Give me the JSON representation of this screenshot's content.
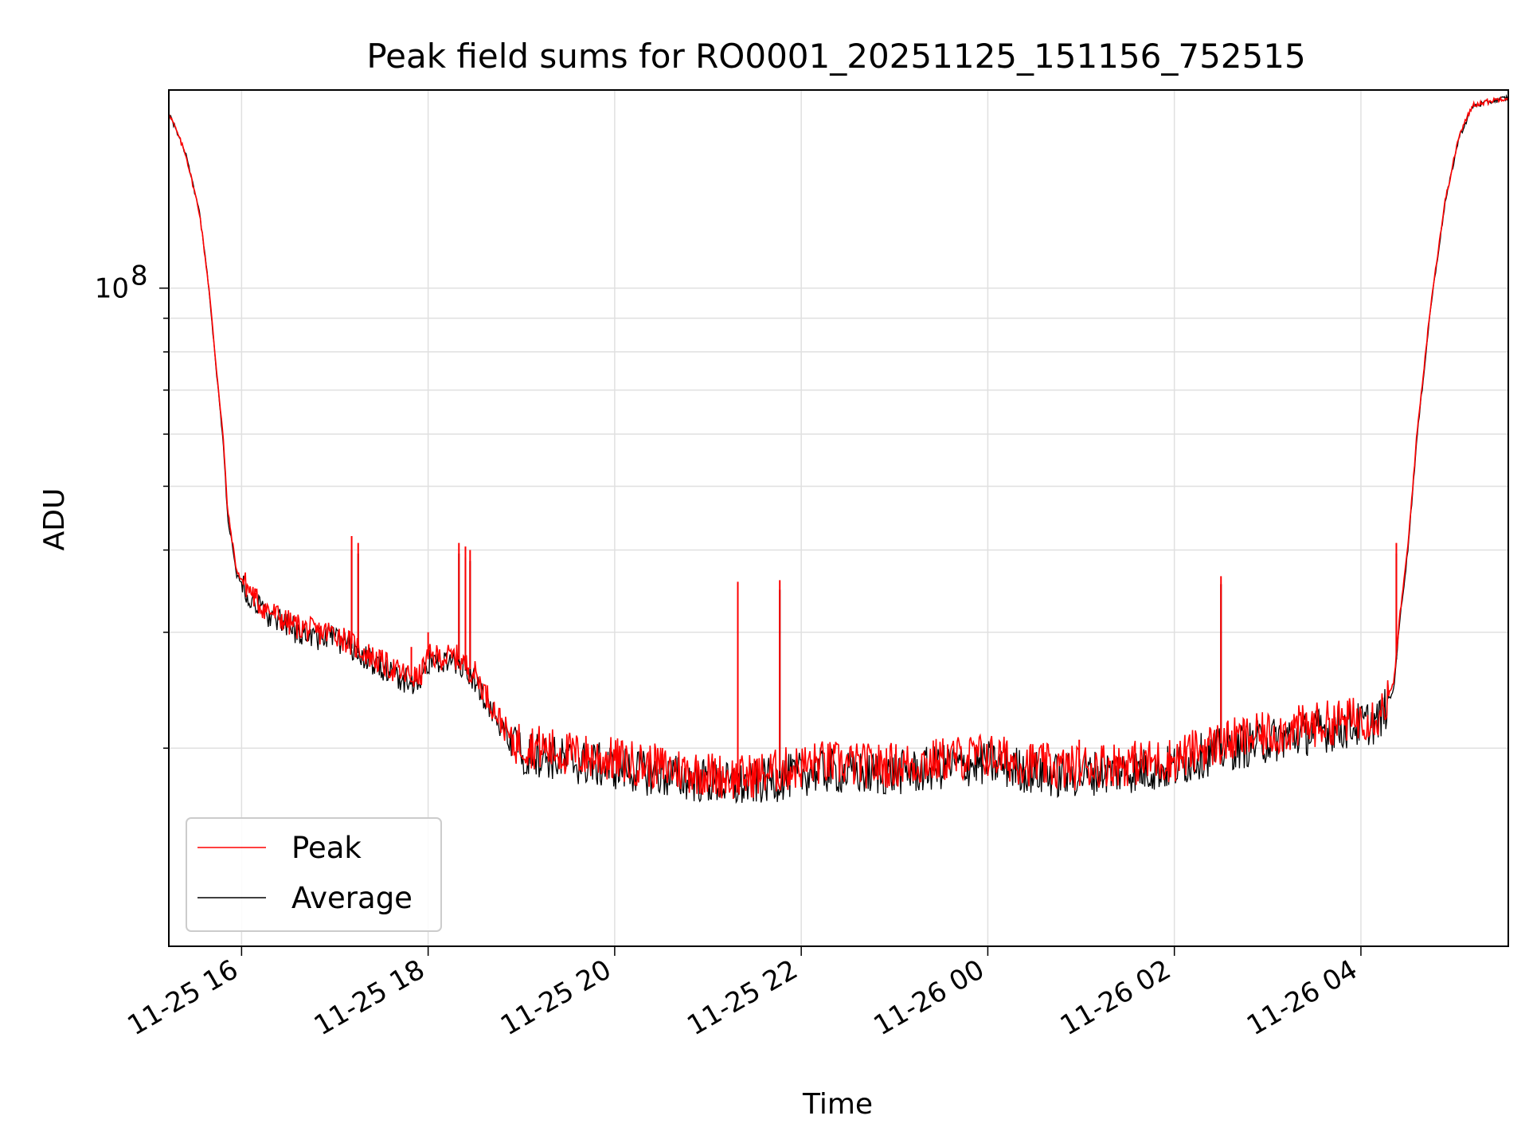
{
  "chart_data": {
    "type": "line",
    "title": "Peak field sums for RO0001_20251125_151156_752515",
    "xlabel": "Time",
    "ylabel": "ADU",
    "yscale": "log",
    "ylim": [
      10000000,
      200000000
    ],
    "xlim_hours": [
      15.22,
      5.58
    ],
    "x_ticks": [
      "11-25 16",
      "11-25 18",
      "11-25 20",
      "11-25 22",
      "11-26 00",
      "11-26 02",
      "11-26 04"
    ],
    "y_major_tick": {
      "value": 100000000,
      "label_base": "10",
      "label_exp": "8"
    },
    "grid": true,
    "legend_location": "lower left",
    "series": [
      {
        "name": "Peak",
        "color": "#ff0000",
        "points": [
          {
            "t": 15.22,
            "v": 185000000
          },
          {
            "t": 15.4,
            "v": 160000000
          },
          {
            "t": 15.55,
            "v": 130000000
          },
          {
            "t": 15.65,
            "v": 100000000
          },
          {
            "t": 15.72,
            "v": 78000000
          },
          {
            "t": 15.8,
            "v": 60000000
          },
          {
            "t": 15.85,
            "v": 46000000
          },
          {
            "t": 15.95,
            "v": 37000000
          },
          {
            "t": 16.2,
            "v": 33000000
          },
          {
            "t": 16.5,
            "v": 31000000
          },
          {
            "t": 16.8,
            "v": 30000000
          },
          {
            "t": 17.0,
            "v": 30000000
          },
          {
            "t": 17.15,
            "v": 29000000
          },
          {
            "t": 17.4,
            "v": 27500000
          },
          {
            "t": 17.7,
            "v": 26000000
          },
          {
            "t": 17.9,
            "v": 25500000
          },
          {
            "t": 18.0,
            "v": 27500000
          },
          {
            "t": 18.3,
            "v": 27500000
          },
          {
            "t": 18.5,
            "v": 26000000
          },
          {
            "t": 18.7,
            "v": 23000000
          },
          {
            "t": 18.9,
            "v": 20500000
          },
          {
            "t": 19.5,
            "v": 19600000
          },
          {
            "t": 20.0,
            "v": 19200000
          },
          {
            "t": 20.5,
            "v": 18700000
          },
          {
            "t": 21.0,
            "v": 18300000
          },
          {
            "t": 21.3,
            "v": 18000000
          },
          {
            "t": 21.7,
            "v": 18400000
          },
          {
            "t": 22.2,
            "v": 19000000
          },
          {
            "t": 22.7,
            "v": 18800000
          },
          {
            "t": 23.2,
            "v": 18900000
          },
          {
            "t": 23.6,
            "v": 19300000
          },
          {
            "t": 24.0,
            "v": 19500000
          },
          {
            "t": 24.4,
            "v": 19000000
          },
          {
            "t": 24.8,
            "v": 18600000
          },
          {
            "t": 25.2,
            "v": 18900000
          },
          {
            "t": 25.6,
            "v": 19000000
          },
          {
            "t": 26.0,
            "v": 19200000
          },
          {
            "t": 26.3,
            "v": 20000000
          },
          {
            "t": 26.6,
            "v": 20500000
          },
          {
            "t": 27.0,
            "v": 21000000
          },
          {
            "t": 27.5,
            "v": 21700000
          },
          {
            "t": 27.9,
            "v": 22100000
          },
          {
            "t": 28.2,
            "v": 22500000
          },
          {
            "t": 28.35,
            "v": 25000000
          },
          {
            "t": 28.42,
            "v": 32000000
          },
          {
            "t": 28.5,
            "v": 40000000
          },
          {
            "t": 28.6,
            "v": 60000000
          },
          {
            "t": 28.75,
            "v": 95000000
          },
          {
            "t": 28.9,
            "v": 135000000
          },
          {
            "t": 29.05,
            "v": 170000000
          },
          {
            "t": 29.2,
            "v": 190000000
          },
          {
            "t": 29.58,
            "v": 195000000
          }
        ],
        "spikes": [
          {
            "t": 16.15,
            "v": 34500000
          },
          {
            "t": 17.18,
            "v": 42000000
          },
          {
            "t": 17.25,
            "v": 41000000
          },
          {
            "t": 17.82,
            "v": 28500000
          },
          {
            "t": 18.0,
            "v": 30000000
          },
          {
            "t": 18.33,
            "v": 41000000
          },
          {
            "t": 18.4,
            "v": 40500000
          },
          {
            "t": 18.45,
            "v": 40000000
          },
          {
            "t": 21.32,
            "v": 35800000
          },
          {
            "t": 21.77,
            "v": 36000000
          },
          {
            "t": 24.98,
            "v": 20600000
          },
          {
            "t": 26.5,
            "v": 36500000
          },
          {
            "t": 28.38,
            "v": 41000000
          }
        ]
      },
      {
        "name": "Average",
        "color": "#000000",
        "points": [
          {
            "t": 15.22,
            "v": 185000000
          },
          {
            "t": 15.4,
            "v": 160000000
          },
          {
            "t": 15.55,
            "v": 130000000
          },
          {
            "t": 15.65,
            "v": 100000000
          },
          {
            "t": 15.72,
            "v": 77000000
          },
          {
            "t": 15.8,
            "v": 59000000
          },
          {
            "t": 15.85,
            "v": 45000000
          },
          {
            "t": 15.95,
            "v": 36500000
          },
          {
            "t": 16.2,
            "v": 32500000
          },
          {
            "t": 16.5,
            "v": 30500000
          },
          {
            "t": 16.8,
            "v": 29500000
          },
          {
            "t": 17.0,
            "v": 29500000
          },
          {
            "t": 17.15,
            "v": 28500000
          },
          {
            "t": 17.4,
            "v": 27000000
          },
          {
            "t": 17.7,
            "v": 25500000
          },
          {
            "t": 17.9,
            "v": 25000000
          },
          {
            "t": 18.0,
            "v": 27000000
          },
          {
            "t": 18.3,
            "v": 27000000
          },
          {
            "t": 18.5,
            "v": 25500000
          },
          {
            "t": 18.7,
            "v": 22500000
          },
          {
            "t": 18.9,
            "v": 20000000
          },
          {
            "t": 19.5,
            "v": 19100000
          },
          {
            "t": 20.0,
            "v": 18700000
          },
          {
            "t": 20.5,
            "v": 18200000
          },
          {
            "t": 21.0,
            "v": 17800000
          },
          {
            "t": 21.3,
            "v": 17500000
          },
          {
            "t": 21.7,
            "v": 17900000
          },
          {
            "t": 22.2,
            "v": 18500000
          },
          {
            "t": 22.7,
            "v": 18300000
          },
          {
            "t": 23.2,
            "v": 18400000
          },
          {
            "t": 23.6,
            "v": 18800000
          },
          {
            "t": 24.0,
            "v": 19000000
          },
          {
            "t": 24.4,
            "v": 18500000
          },
          {
            "t": 24.8,
            "v": 18100000
          },
          {
            "t": 25.2,
            "v": 18400000
          },
          {
            "t": 25.6,
            "v": 18500000
          },
          {
            "t": 26.0,
            "v": 18700000
          },
          {
            "t": 26.3,
            "v": 19500000
          },
          {
            "t": 26.6,
            "v": 20000000
          },
          {
            "t": 27.0,
            "v": 20500000
          },
          {
            "t": 27.5,
            "v": 21200000
          },
          {
            "t": 27.9,
            "v": 21600000
          },
          {
            "t": 28.2,
            "v": 22000000
          },
          {
            "t": 28.35,
            "v": 24500000
          },
          {
            "t": 28.42,
            "v": 31500000
          },
          {
            "t": 28.5,
            "v": 39500000
          },
          {
            "t": 28.6,
            "v": 59000000
          },
          {
            "t": 28.75,
            "v": 94000000
          },
          {
            "t": 28.9,
            "v": 134000000
          },
          {
            "t": 29.05,
            "v": 169000000
          },
          {
            "t": 29.2,
            "v": 189000000
          },
          {
            "t": 29.58,
            "v": 195000000
          }
        ],
        "spikes": [
          {
            "t": 17.18,
            "v": 40000000
          },
          {
            "t": 17.25,
            "v": 39500000
          },
          {
            "t": 18.33,
            "v": 39500000
          },
          {
            "t": 18.4,
            "v": 39000000
          },
          {
            "t": 18.45,
            "v": 38500000
          },
          {
            "t": 21.32,
            "v": 34500000
          },
          {
            "t": 21.77,
            "v": 34800000
          },
          {
            "t": 26.5,
            "v": 35500000
          },
          {
            "t": 28.38,
            "v": 39500000
          }
        ]
      }
    ]
  }
}
